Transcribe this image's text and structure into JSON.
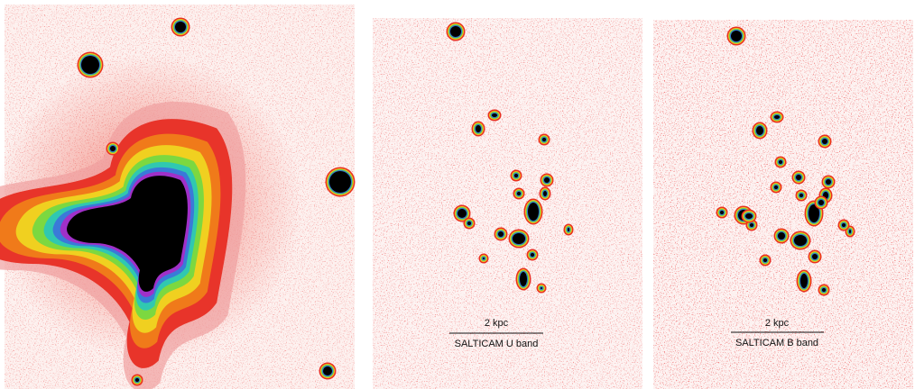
{
  "panels": [
    {
      "scale_bar": "2 kpc",
      "label": "SALTICAM U band"
    },
    {
      "scale_bar": "2 kpc",
      "label": "SALTICAM B band"
    }
  ]
}
